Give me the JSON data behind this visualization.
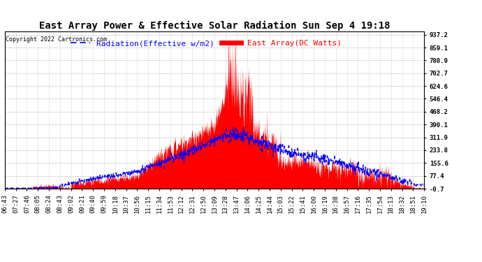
{
  "title": "East Array Power & Effective Solar Radiation Sun Sep 4 19:18",
  "copyright": "Copyright 2022 Cartronics.com",
  "legend_radiation": "Radiation(Effective w/m2)",
  "legend_east": "East Array(DC Watts)",
  "radiation_color": "blue",
  "east_color": "red",
  "background_color": "#ffffff",
  "plot_bg_color": "#ffffff",
  "yticks": [
    -0.7,
    77.4,
    155.6,
    233.8,
    311.9,
    390.1,
    468.2,
    546.4,
    624.6,
    702.7,
    780.9,
    859.1,
    937.2
  ],
  "ymin": -0.7,
  "ymax": 937.2,
  "xtick_labels": [
    "06:43",
    "07:27",
    "07:46",
    "08:05",
    "08:24",
    "08:43",
    "09:02",
    "09:21",
    "09:40",
    "09:59",
    "10:18",
    "10:37",
    "10:56",
    "11:15",
    "11:34",
    "11:53",
    "12:12",
    "12:31",
    "12:50",
    "13:09",
    "13:28",
    "13:47",
    "14:06",
    "14:25",
    "14:44",
    "15:03",
    "15:22",
    "15:41",
    "16:00",
    "16:19",
    "16:38",
    "16:57",
    "17:16",
    "17:35",
    "17:54",
    "18:13",
    "18:32",
    "18:51",
    "19:10"
  ],
  "grid_color": "#aaaaaa",
  "title_fontsize": 10,
  "tick_fontsize": 6.5,
  "legend_fontsize": 8
}
